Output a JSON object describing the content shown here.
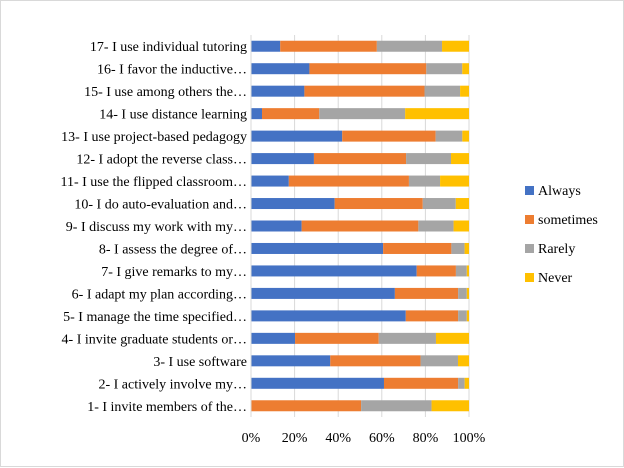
{
  "chart_data": {
    "type": "bar",
    "orientation": "horizontal",
    "stacked": "percent",
    "categories": [
      "1- I invite members of the…",
      "2- I actively involve my…",
      "3- I use software",
      "4- I invite graduate students or…",
      "5- I manage the time specified…",
      "6- I adapt my plan according…",
      "7- I give remarks to my…",
      "8- I assess the degree of…",
      "9- I discuss my work with my…",
      "10- I do auto-evaluation and…",
      "11- I use the flipped classroom…",
      "12- I adopt the reverse class…",
      "13- I use project-based pedagogy",
      "14- I use distance learning",
      "15- I use among others the…",
      "16- I favor the inductive…",
      "17- I use individual tutoring"
    ],
    "series": [
      {
        "name": "Always",
        "color": "#4472C4",
        "values": [
          0,
          61,
          36,
          20,
          71,
          66,
          76,
          60,
          23,
          38,
          17,
          28,
          41,
          5,
          24,
          26,
          13
        ]
      },
      {
        "name": "sometimes",
        "color": "#ED7D31",
        "values": [
          50,
          34,
          41,
          38,
          24,
          29,
          18,
          31,
          53,
          40,
          54,
          41,
          42,
          26,
          54,
          52,
          43
        ]
      },
      {
        "name": "Rarely",
        "color": "#A5A5A5",
        "values": [
          32,
          3,
          17,
          26,
          4,
          4,
          5,
          6,
          16,
          15,
          14,
          20,
          12,
          39,
          16,
          16,
          29
        ]
      },
      {
        "name": "Never",
        "color": "#FFC000",
        "values": [
          17,
          2,
          5,
          15,
          1,
          1,
          1,
          2,
          7,
          6,
          13,
          8,
          3,
          29,
          4,
          3,
          12
        ]
      }
    ],
    "xaxis": {
      "ticks": [
        "0%",
        "20%",
        "40%",
        "60%",
        "80%",
        "100%"
      ],
      "range": [
        0,
        100
      ]
    },
    "grid": true,
    "legend_position": "right"
  }
}
